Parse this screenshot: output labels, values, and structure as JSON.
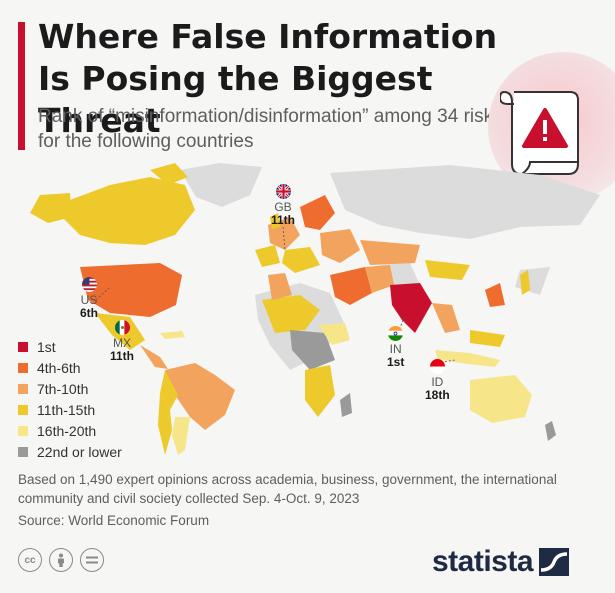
{
  "header": {
    "title": "Where False Information Is Posing the Biggest Threat",
    "subtitle": "Rank of “misinformation/disinformation” among 34 risks for the following countries"
  },
  "colors": {
    "accent": "#c8102e",
    "rank_1st": "#c8102e",
    "rank_4_6": "#ef6c2f",
    "rank_7_10": "#f2a35e",
    "rank_11_15": "#edc92b",
    "rank_16_20": "#f7e58a",
    "rank_22_lower": "#9a9a9a",
    "no_data": "#dcdcdc",
    "brand": "#1f2a44"
  },
  "legend": [
    {
      "label": "1st",
      "color": "#c8102e"
    },
    {
      "label": "4th-6th",
      "color": "#ef6c2f"
    },
    {
      "label": "7th-10th",
      "color": "#f2a35e"
    },
    {
      "label": "11th-15th",
      "color": "#edc92b"
    },
    {
      "label": "16th-20th",
      "color": "#f7e58a"
    },
    {
      "label": "22nd or lower",
      "color": "#9a9a9a"
    }
  ],
  "callouts": {
    "gb": {
      "code": "GB",
      "rank": "11th",
      "flag_icon": "uk-flag-icon"
    },
    "us": {
      "code": "US",
      "rank": "6th",
      "flag_icon": "us-flag-icon"
    },
    "mx": {
      "code": "MX",
      "rank": "11th",
      "flag_icon": "mexico-flag-icon"
    },
    "in": {
      "code": "IN",
      "rank": "1st",
      "flag_icon": "india-flag-icon"
    },
    "id": {
      "code": "ID",
      "rank": "18th",
      "flag_icon": "indonesia-flag-icon"
    }
  },
  "footer": {
    "note": "Based on 1,490 expert opinions across academia, business, government, the international community and civil society collected Sep. 4-Oct. 9, 2023",
    "source": "Source: World Economic Forum",
    "brand": "statista",
    "license_icons": [
      "creative-commons-icon",
      "attribution-icon",
      "no-derivatives-icon"
    ]
  }
}
